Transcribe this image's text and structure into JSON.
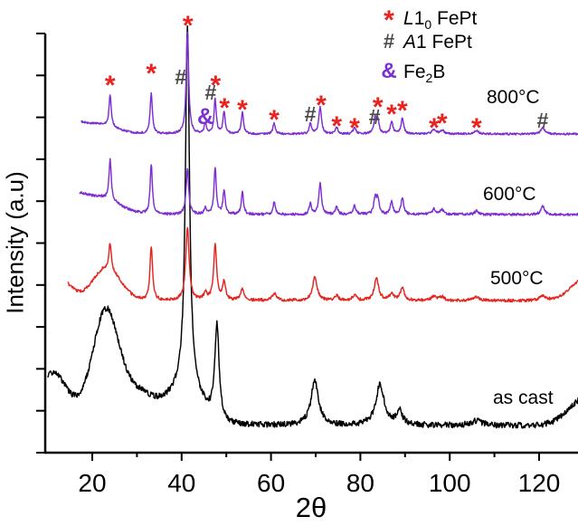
{
  "axes": {
    "xlabel": "2θ",
    "ylabel": "Intensity (a.u)"
  },
  "legend": {
    "items": [
      {
        "symbol": "*",
        "color": "#e8231f",
        "italic": "L",
        "main": "1",
        "sub": "0",
        "rest": " FePt"
      },
      {
        "symbol": "#",
        "color": "#4a4a4a",
        "italic": "A",
        "main": "1",
        "sub": "",
        "rest": " FePt"
      },
      {
        "symbol": "&",
        "color": "#7e2fd2",
        "italic": "",
        "main": "Fe",
        "sub": "2",
        "rest": "B"
      }
    ]
  },
  "chart_data": {
    "type": "line",
    "xlabel": "2θ",
    "ylabel": "Intensity (a.u)",
    "x_range": [
      9.5,
      128.7
    ],
    "x_ticks_major": [
      20,
      40,
      60,
      80,
      100,
      120
    ],
    "x_ticks_minor": [
      30,
      50,
      70,
      90,
      110
    ],
    "grid": false,
    "legend_position": "top-right",
    "series": [
      {
        "name": "as cast",
        "color": "#000000",
        "baseline": 470,
        "start": 10.1,
        "noise": 3.2,
        "seed": 13,
        "peaks": [
          [
            41.3,
            400,
            0.55
          ],
          [
            47.9,
            105,
            0.6
          ],
          [
            69.8,
            50,
            1.0
          ],
          [
            84.4,
            45,
            1.1
          ],
          [
            88.8,
            15,
            0.8
          ],
          [
            106,
            5,
            1.5
          ]
        ],
        "humps": [
          [
            23,
            86,
            2.6
          ],
          [
            26,
            46,
            8
          ],
          [
            11,
            50,
            2.8
          ],
          [
            41.3,
            35,
            3.2
          ],
          [
            131,
            32,
            4
          ]
        ]
      },
      {
        "name": "500°C",
        "color": "#e52520",
        "baseline": 332,
        "start": 14.6,
        "noise": 1.6,
        "seed": 7,
        "peaks": [
          [
            24,
            29,
            0.3
          ],
          [
            33.2,
            60,
            0.35
          ],
          [
            41.3,
            80,
            0.45
          ],
          [
            45.3,
            8,
            0.4
          ],
          [
            47.5,
            62,
            0.4
          ],
          [
            49.5,
            20,
            0.4
          ],
          [
            53.6,
            12,
            0.5
          ],
          [
            60.7,
            8,
            0.5
          ],
          [
            69.8,
            26,
            0.6
          ],
          [
            74.7,
            5,
            0.5
          ],
          [
            78.7,
            6,
            0.5
          ],
          [
            83.6,
            24,
            0.6
          ],
          [
            87,
            8,
            0.5
          ],
          [
            89.4,
            14,
            0.5
          ],
          [
            96.5,
            5,
            0.6
          ],
          [
            98.3,
            4,
            0.6
          ],
          [
            106,
            4,
            0.8
          ],
          [
            120.8,
            5,
            0.8
          ]
        ],
        "humps": [
          [
            23.2,
            36,
            3.1
          ],
          [
            13.5,
            20,
            2.2
          ],
          [
            131,
            26,
            3.5
          ]
        ]
      },
      {
        "name": "600°C",
        "color": "#7e2fd2",
        "baseline": 237,
        "start": 17.2,
        "noise": 1.4,
        "seed": 5,
        "peaks": [
          [
            24,
            45,
            0.3
          ],
          [
            33.2,
            55,
            0.3
          ],
          [
            41.3,
            50,
            0.35
          ],
          [
            45.3,
            7,
            0.3
          ],
          [
            47.5,
            52,
            0.3
          ],
          [
            49.5,
            26,
            0.3
          ],
          [
            53.6,
            25,
            0.3
          ],
          [
            60.7,
            14,
            0.3
          ],
          [
            68.8,
            12,
            0.3
          ],
          [
            71,
            34,
            0.35
          ],
          [
            74.7,
            8,
            0.35
          ],
          [
            78.7,
            10,
            0.35
          ],
          [
            83.3,
            18,
            0.35
          ],
          [
            83.9,
            16,
            0.35
          ],
          [
            87,
            14,
            0.35
          ],
          [
            89.4,
            19,
            0.35
          ],
          [
            96.5,
            6,
            0.5
          ],
          [
            98.3,
            5,
            0.5
          ],
          [
            106,
            4,
            0.5
          ],
          [
            120.8,
            9,
            0.5
          ]
        ],
        "humps": [
          [
            21,
            20,
            4.5
          ],
          [
            16,
            12,
            2.0
          ]
        ]
      },
      {
        "name": "800°C",
        "color": "#7e2fd2",
        "baseline": 148,
        "start": 17.6,
        "noise": 1.1,
        "seed": 9,
        "peaks": [
          [
            24,
            35,
            0.3
          ],
          [
            33.2,
            45,
            0.3
          ],
          [
            41.3,
            112,
            0.33
          ],
          [
            45.3,
            11,
            0.3
          ],
          [
            47.5,
            38,
            0.3
          ],
          [
            49.5,
            24,
            0.3
          ],
          [
            53.6,
            24,
            0.3
          ],
          [
            60.7,
            12,
            0.3
          ],
          [
            68.8,
            12,
            0.3
          ],
          [
            71,
            30,
            0.35
          ],
          [
            74.7,
            7,
            0.35
          ],
          [
            78.7,
            7,
            0.35
          ],
          [
            83.3,
            16,
            0.35
          ],
          [
            83.9,
            14,
            0.35
          ],
          [
            87,
            13,
            0.35
          ],
          [
            89.4,
            17,
            0.35
          ],
          [
            96.5,
            5,
            0.5
          ],
          [
            98.3,
            4,
            0.5
          ],
          [
            106,
            4,
            0.5
          ],
          [
            120.8,
            7,
            0.5
          ]
        ],
        "humps": [
          [
            21,
            11,
            4.0
          ],
          [
            16,
            8,
            2.0
          ]
        ]
      }
    ],
    "phase_markers": {
      "glyph_colors": {
        "*": "#e8231f",
        "#": "#4a4a4a",
        "&": "#7e2fd2"
      },
      "items": [
        {
          "g": "*",
          "x": 24.0,
          "y": 88
        },
        {
          "g": "*",
          "x": 33.2,
          "y": 75
        },
        {
          "g": "#",
          "x": 39.8,
          "y": 85
        },
        {
          "g": "*",
          "x": 41.4,
          "y": 22
        },
        {
          "g": "&",
          "x": 45.3,
          "y": 128
        },
        {
          "g": "#",
          "x": 46.5,
          "y": 102
        },
        {
          "g": "*",
          "x": 47.6,
          "y": 88
        },
        {
          "g": "*",
          "x": 49.6,
          "y": 113
        },
        {
          "g": "*",
          "x": 53.6,
          "y": 115
        },
        {
          "g": "*",
          "x": 60.7,
          "y": 126
        },
        {
          "g": "#",
          "x": 68.8,
          "y": 126
        },
        {
          "g": "*",
          "x": 71.2,
          "y": 110
        },
        {
          "g": "*",
          "x": 74.7,
          "y": 133
        },
        {
          "g": "*",
          "x": 78.7,
          "y": 135
        },
        {
          "g": "#",
          "x": 83.2,
          "y": 129
        },
        {
          "g": "*",
          "x": 83.9,
          "y": 112
        },
        {
          "g": "*",
          "x": 87.0,
          "y": 120
        },
        {
          "g": "*",
          "x": 89.4,
          "y": 116
        },
        {
          "g": "*",
          "x": 96.5,
          "y": 135
        },
        {
          "g": "*",
          "x": 98.3,
          "y": 130
        },
        {
          "g": "*",
          "x": 106.0,
          "y": 135
        },
        {
          "g": "#",
          "x": 120.8,
          "y": 133
        }
      ]
    }
  }
}
